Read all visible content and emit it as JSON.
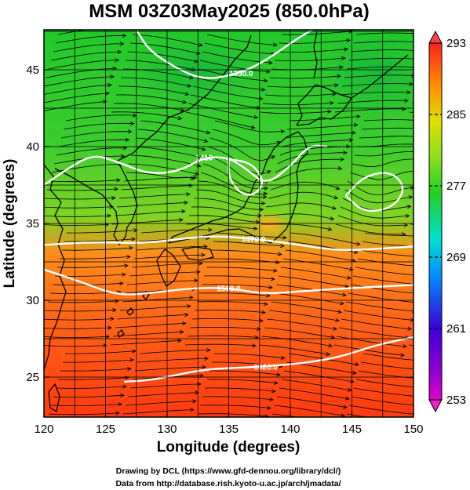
{
  "title": "MSM 03Z03May2025 (850.0hPa)",
  "x_axis": {
    "label": "Longitude (degrees)",
    "range": [
      120,
      150
    ],
    "ticks": [
      "120",
      "125",
      "130",
      "135",
      "140",
      "145",
      "150"
    ]
  },
  "y_axis": {
    "label": "Latitude  (degrees)",
    "range": [
      22.4,
      47.6
    ],
    "ticks": [
      "25",
      "30",
      "35",
      "40",
      "45"
    ]
  },
  "colorbar": {
    "range": [
      253,
      293
    ],
    "ticks": [
      "253",
      "261",
      "269",
      "277",
      "285",
      "293"
    ],
    "colors": [
      "#e000c8",
      "#3a00d8",
      "#0090ff",
      "#00e0d0",
      "#20d020",
      "#e0e000",
      "#ff9000",
      "#ff3000"
    ]
  },
  "contours": {
    "color": "#ffffff",
    "labels": [
      "1350.0",
      "1410",
      "1470.0",
      "1500.0",
      "1520.0"
    ]
  },
  "credits": [
    "Drawing by DCL (https://www.gfd-dennou.org/library/dcl/)",
    "Data from http://database.rish.kyoto-u.ac.jp/arch/jmadata/"
  ],
  "chart_data": {
    "type": "heatmap",
    "title": "MSM 03Z03May2025 (850.0hPa)",
    "xlabel": "Longitude (degrees)",
    "ylabel": "Latitude  (degrees)",
    "xlim": [
      120,
      150
    ],
    "ylim": [
      22.4,
      47.6
    ],
    "xticks": [
      120,
      125,
      130,
      135,
      140,
      145,
      150
    ],
    "yticks": [
      25,
      30,
      35,
      40,
      45
    ],
    "color_range": [
      253,
      293
    ],
    "colorbar_ticks": [
      253,
      261,
      269,
      277,
      285,
      293
    ],
    "grid": true,
    "temperature_by_latitude": [
      {
        "lat": 23,
        "value": 289
      },
      {
        "lat": 27,
        "value": 287
      },
      {
        "lat": 31,
        "value": 285
      },
      {
        "lat": 33.5,
        "value": 282
      },
      {
        "lat": 36,
        "value": 279
      },
      {
        "lat": 40,
        "value": 277
      },
      {
        "lat": 45,
        "value": 277
      }
    ],
    "contour_lines": [
      {
        "label": "1350.0",
        "points": [
          [
            127.5,
            47.6
          ],
          [
            128.5,
            46.3
          ],
          [
            130.5,
            45.2
          ],
          [
            133,
            44.3
          ],
          [
            136,
            44.8
          ],
          [
            138,
            45.6
          ],
          [
            140.5,
            47.0
          ],
          [
            141.8,
            47.6
          ]
        ]
      },
      {
        "label": "1410",
        "points": [
          [
            120,
            37.5
          ],
          [
            122,
            38.6
          ],
          [
            124,
            39.5
          ],
          [
            126,
            39.0
          ],
          [
            128.5,
            38.2
          ],
          [
            131,
            38.4
          ],
          [
            133,
            39.3
          ],
          [
            135,
            39.3
          ],
          [
            136.5,
            38.5
          ],
          [
            138,
            37.5
          ],
          [
            140,
            38.7
          ],
          [
            141.5,
            40.1
          ],
          [
            143,
            40.0
          ]
        ]
      },
      {
        "label": "1470.0",
        "points": [
          [
            120,
            33.6
          ],
          [
            124,
            33.8
          ],
          [
            128,
            33.7
          ],
          [
            131,
            34.0
          ],
          [
            134,
            34.2
          ],
          [
            137,
            34.0
          ],
          [
            140,
            33.7
          ],
          [
            144,
            33.2
          ],
          [
            148,
            33.4
          ],
          [
            150,
            33.5
          ]
        ]
      },
      {
        "label": "1500.0",
        "points": [
          [
            120,
            32.0
          ],
          [
            123,
            31.2
          ],
          [
            126,
            30.3
          ],
          [
            129,
            30.5
          ],
          [
            132,
            30.8
          ],
          [
            135,
            30.8
          ],
          [
            138,
            30.4
          ],
          [
            141,
            30.6
          ],
          [
            145,
            30.8
          ],
          [
            150,
            31.0
          ]
        ]
      },
      {
        "label": "1520.0",
        "points": [
          [
            126.5,
            24.7
          ],
          [
            128.5,
            24.8
          ],
          [
            130.5,
            25.1
          ],
          [
            133,
            25.5
          ],
          [
            135.5,
            25.6
          ],
          [
            138,
            25.7
          ],
          [
            141,
            25.9
          ],
          [
            144,
            26.3
          ],
          [
            147,
            27.1
          ],
          [
            150,
            27.6
          ]
        ]
      },
      {
        "label": "",
        "points": [
          [
            144.5,
            36.8
          ],
          [
            146,
            38.1
          ],
          [
            148.2,
            38.4
          ],
          [
            149.4,
            37.3
          ],
          [
            148.3,
            36.0
          ],
          [
            146,
            35.7
          ],
          [
            144.5,
            36.8
          ]
        ]
      },
      {
        "label": "",
        "points": [
          [
            135,
            39.2
          ],
          [
            137,
            38.9
          ],
          [
            138,
            37.5
          ],
          [
            136.5,
            36.6
          ],
          [
            135,
            37.8
          ],
          [
            135,
            39.2
          ]
        ]
      }
    ]
  }
}
